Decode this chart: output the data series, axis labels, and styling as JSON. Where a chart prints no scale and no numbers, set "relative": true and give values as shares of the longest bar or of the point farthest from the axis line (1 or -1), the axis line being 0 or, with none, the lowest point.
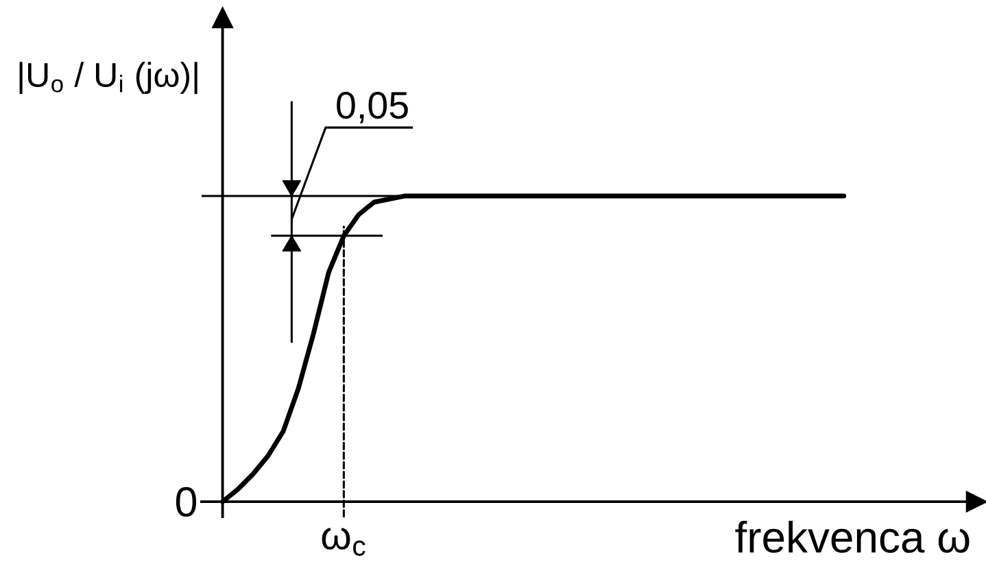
{
  "chart_data": {
    "type": "line",
    "xlabel": "frekvenca ω",
    "ylabel": "|U$_{o}$ / U$_{i}$ (jω)|",
    "relative": true,
    "categories": [
      null,
      null,
      null,
      null,
      null,
      null,
      null,
      null,
      null,
      null,
      null,
      null,
      null,
      null,
      null,
      null,
      null,
      null,
      null,
      null,
      null,
      null,
      null,
      null,
      null,
      null,
      null,
      null,
      null,
      null,
      null,
      null,
      null,
      null,
      null,
      null,
      null,
      null,
      null,
      null,
      null,
      null
    ],
    "series": [
      {
        "color": "#000000",
        "values": [
          0,
          0.04,
          0.09,
          0.15,
          0.23,
          0.37,
          0.55,
          0.75,
          0.87,
          0.94,
          0.98,
          0.99,
          1,
          1,
          1,
          1,
          1,
          1,
          1,
          1,
          1,
          1,
          1,
          1,
          1,
          1,
          1,
          1,
          1,
          1,
          1,
          1,
          1,
          1,
          1,
          1,
          1,
          1,
          1,
          1,
          1,
          1
        ]
      }
    ],
    "ref_lines": [
      {
        "axis": "y",
        "value": 1,
        "color": "#000000"
      }
    ],
    "annotations": [
      "0",
      {
        "text": "ω$_{c}$",
        "y": 0.87
      },
      "0,05"
    ]
  }
}
